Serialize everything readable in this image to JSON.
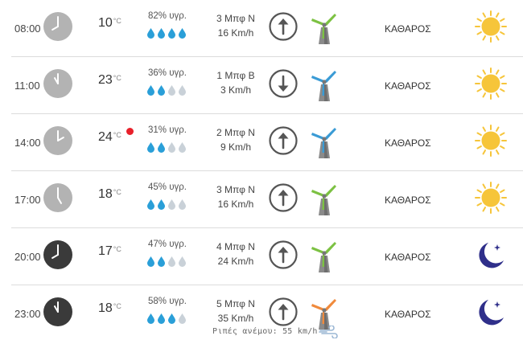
{
  "rows": [
    {
      "time": "08:00",
      "temp": "10",
      "unit": "°C",
      "humidity": "82% υγρ.",
      "drops": 4,
      "wind_force": "3 Μπφ Ν",
      "wind_speed": "16 Km/h",
      "arrow": "up",
      "turbine_color": "green",
      "condition": "ΚΑΘΑΡΟΣ",
      "icon": "sun",
      "clock_dark": false,
      "hour": 8,
      "alert": false
    },
    {
      "time": "11:00",
      "temp": "23",
      "unit": "°C",
      "humidity": "36% υγρ.",
      "drops": 2,
      "wind_force": "1 Μπφ Β",
      "wind_speed": "3 Km/h",
      "arrow": "down",
      "turbine_color": "blue",
      "condition": "ΚΑΘΑΡΟΣ",
      "icon": "sun",
      "clock_dark": false,
      "hour": 11,
      "alert": false
    },
    {
      "time": "14:00",
      "temp": "24",
      "unit": "°C",
      "humidity": "31% υγρ.",
      "drops": 2,
      "wind_force": "2 Μπφ Ν",
      "wind_speed": "9 Km/h",
      "arrow": "up",
      "turbine_color": "blue",
      "condition": "ΚΑΘΑΡΟΣ",
      "icon": "sun",
      "clock_dark": false,
      "hour": 14,
      "alert": true
    },
    {
      "time": "17:00",
      "temp": "18",
      "unit": "°C",
      "humidity": "45% υγρ.",
      "drops": 2,
      "wind_force": "3 Μπφ Ν",
      "wind_speed": "16 Km/h",
      "arrow": "up",
      "turbine_color": "green",
      "condition": "ΚΑΘΑΡΟΣ",
      "icon": "sun",
      "clock_dark": false,
      "hour": 17,
      "alert": false
    },
    {
      "time": "20:00",
      "temp": "17",
      "unit": "°C",
      "humidity": "47% υγρ.",
      "drops": 2,
      "wind_force": "4 Μπφ Ν",
      "wind_speed": "24 Km/h",
      "arrow": "up",
      "turbine_color": "green",
      "condition": "ΚΑΘΑΡΟΣ",
      "icon": "moon",
      "clock_dark": true,
      "hour": 20,
      "alert": false
    },
    {
      "time": "23:00",
      "temp": "18",
      "unit": "°C",
      "humidity": "58% υγρ.",
      "drops": 3,
      "wind_force": "5 Μπφ Ν",
      "wind_speed": "35 Km/h",
      "arrow": "up",
      "turbine_color": "orange",
      "condition": "ΚΑΘΑΡΟΣ",
      "icon": "moon",
      "clock_dark": true,
      "hour": 23,
      "alert": false
    }
  ],
  "gusts": "Ριπές ανέμου: 55 km/h",
  "colors": {
    "clock_light": "#b3b3b3",
    "clock_dark": "#3a3a3a",
    "drop_filled": "#2a9fd8",
    "drop_empty": "#c9d1d8",
    "turbine_green": "#7cc142",
    "turbine_blue": "#3a9bd5",
    "turbine_orange": "#f08a3c",
    "sun": "#f6c53a",
    "moon": "#2f2f8a",
    "alert": "#e8202a"
  }
}
